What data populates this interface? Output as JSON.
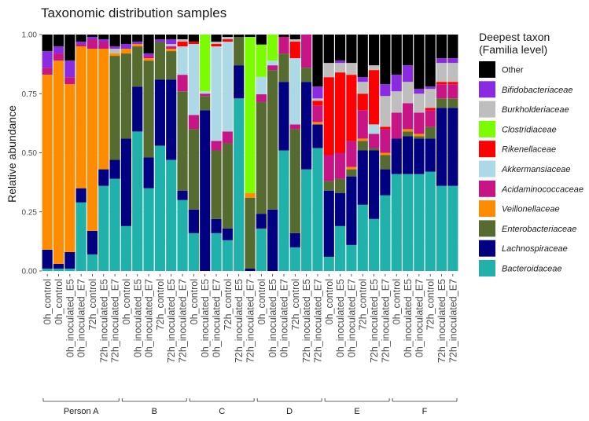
{
  "chart_data": {
    "type": "bar",
    "stacked": true,
    "title": "Taxonomic distribution  samples",
    "ylabel": "Relative abundance",
    "xlabel": "",
    "ylim": [
      0,
      1
    ],
    "yticks": [
      "0.00",
      "0.25",
      "0.50",
      "0.75",
      "1.00"
    ],
    "grid": true,
    "legend_position": "right",
    "legend_title": "Deepest taxon\n(Familia level)",
    "categories": [
      "0h_control",
      "0h_inoculated_E5",
      "0h_inoculated_E7",
      "72h_control",
      "72h_inoculated_E5",
      "72h_inoculated_E7"
    ],
    "groups": [
      "Person A",
      "B",
      "C",
      "D",
      "E",
      "F"
    ],
    "taxa": [
      {
        "name": "Bacteroidaceae",
        "color": "#20b2aa",
        "italic": true
      },
      {
        "name": "Lachnospiraceae",
        "color": "#000080",
        "italic": true
      },
      {
        "name": "Enterobacteriaceae",
        "color": "#556b2f",
        "italic": true
      },
      {
        "name": "Veillonellaceae",
        "color": "#ff8c00",
        "italic": true
      },
      {
        "name": "Acidaminococcaceae",
        "color": "#c71585",
        "italic": true
      },
      {
        "name": "Akkermansiaceae",
        "color": "#add8e6",
        "italic": true
      },
      {
        "name": "Rikenellaceae",
        "color": "#ff0000",
        "italic": true
      },
      {
        "name": "Clostridiaceae",
        "color": "#7cfc00",
        "italic": true
      },
      {
        "name": "Burkholderiaceae",
        "color": "#bebebe",
        "italic": true
      },
      {
        "name": "Bifidobacteriaceae",
        "color": "#8a2be2",
        "italic": true
      },
      {
        "name": "Other",
        "color": "#000000",
        "italic": false
      }
    ],
    "legend_order": [
      "Other",
      "Bifidobacteriaceae",
      "Burkholderiaceae",
      "Clostridiaceae",
      "Rikenellaceae",
      "Akkermansiaceae",
      "Acidaminococcaceae",
      "Veillonellaceae",
      "Enterobacteriaceae",
      "Lachnospiraceae",
      "Bacteroidaceae"
    ],
    "samples": [
      {
        "group": "Person A",
        "label": "0h_control",
        "values": [
          0.01,
          0.08,
          0,
          0.74,
          0.03,
          0,
          0,
          0,
          0,
          0.07,
          0.07
        ]
      },
      {
        "group": "Person A",
        "label": "0h_control",
        "values": [
          0.01,
          0.02,
          0,
          0.86,
          0.03,
          0,
          0,
          0,
          0,
          0.03,
          0.05
        ]
      },
      {
        "group": "Person A",
        "label": "0h_inoculated_E5",
        "values": [
          0.01,
          0.07,
          0,
          0.71,
          0.03,
          0,
          0,
          0,
          0,
          0.07,
          0.11
        ]
      },
      {
        "group": "Person A",
        "label": "0h_inoculated_E7",
        "values": [
          0.29,
          0.06,
          0,
          0.6,
          0.01,
          0,
          0,
          0,
          0,
          0.01,
          0.03
        ]
      },
      {
        "group": "Person A",
        "label": "72h_control",
        "values": [
          0.07,
          0.1,
          0,
          0.77,
          0.04,
          0,
          0,
          0,
          0,
          0.01,
          0.01
        ]
      },
      {
        "group": "Person A",
        "label": "72h_inoculated_E5",
        "values": [
          0.36,
          0.07,
          0,
          0.51,
          0.03,
          0,
          0,
          0,
          0,
          0.01,
          0.02
        ]
      },
      {
        "group": "Person A",
        "label": "72h_inoculated_E7",
        "values": [
          0.39,
          0.08,
          0.44,
          0.01,
          0,
          0,
          0,
          0,
          0.02,
          0.01,
          0.05
        ]
      },
      {
        "group": "B",
        "label": "0h_control",
        "values": [
          0.19,
          0.37,
          0.36,
          0.02,
          0,
          0,
          0,
          0,
          0,
          0.02,
          0.04
        ]
      },
      {
        "group": "B",
        "label": "0h_inoculated_E5",
        "values": [
          0.59,
          0.19,
          0.17,
          0.01,
          0,
          0,
          0,
          0,
          0,
          0.01,
          0.03
        ]
      },
      {
        "group": "B",
        "label": "0h_inoculated_E7",
        "values": [
          0.35,
          0.13,
          0.41,
          0.01,
          0.01,
          0,
          0,
          0,
          0,
          0.01,
          0.08
        ]
      },
      {
        "group": "B",
        "label": "72h_control",
        "values": [
          0.53,
          0.28,
          0.16,
          0,
          0,
          0,
          0,
          0,
          0,
          0.01,
          0.02
        ]
      },
      {
        "group": "B",
        "label": "72h_inoculated_E5",
        "values": [
          0.47,
          0.34,
          0.12,
          0.01,
          0.01,
          0,
          0,
          0,
          0.01,
          0.02,
          0.02
        ]
      },
      {
        "group": "B",
        "label": "72h_inoculated_E7",
        "values": [
          0.3,
          0.04,
          0.42,
          0,
          0.07,
          0.12,
          0.02,
          0,
          0.01,
          0,
          0.02
        ]
      },
      {
        "group": "C",
        "label": "0h_control",
        "values": [
          0.16,
          0.1,
          0.34,
          0,
          0.06,
          0.3,
          0.01,
          0,
          0,
          0,
          0.03
        ]
      },
      {
        "group": "C",
        "label": "0h_inoculated_E5",
        "values": [
          0,
          0.68,
          0.06,
          0,
          0.01,
          0.01,
          0,
          0.24,
          0,
          0,
          0
        ]
      },
      {
        "group": "C",
        "label": "0h_inoculated_E7",
        "values": [
          0.16,
          0.06,
          0.29,
          0,
          0.04,
          0.4,
          0.01,
          0,
          0.01,
          0,
          0.03
        ]
      },
      {
        "group": "C",
        "label": "72h_control",
        "values": [
          0.13,
          0.05,
          0.36,
          0,
          0.05,
          0.38,
          0.01,
          0,
          0.01,
          0,
          0.01
        ]
      },
      {
        "group": "C",
        "label": "72h_inoculated_E5",
        "values": [
          0.73,
          0.14,
          0.12,
          0,
          0,
          0,
          0,
          0,
          0,
          0,
          0.01
        ]
      },
      {
        "group": "C",
        "label": "72h_inoculated_E7",
        "values": [
          0,
          0.01,
          0.3,
          0.02,
          0,
          0,
          0,
          0.66,
          0,
          0,
          0.01
        ]
      },
      {
        "group": "D",
        "label": "0h_control",
        "values": [
          0.17,
          0.06,
          0.45,
          0,
          0.03,
          0.07,
          0,
          0.13,
          0,
          0,
          0.04
        ]
      },
      {
        "group": "D",
        "label": "0h_inoculated_E5",
        "values": [
          0,
          0.26,
          0.59,
          0,
          0.02,
          0.02,
          0,
          0.11,
          0,
          0,
          0
        ]
      },
      {
        "group": "D",
        "label": "0h_inoculated_E7",
        "values": [
          0.51,
          0.29,
          0.12,
          0,
          0.07,
          0,
          0,
          0,
          0,
          0,
          0.01
        ]
      },
      {
        "group": "D",
        "label": "72h_control",
        "values": [
          0.1,
          0.06,
          0.44,
          0,
          0.02,
          0.28,
          0.07,
          0,
          0.01,
          0,
          0.02
        ]
      },
      {
        "group": "D",
        "label": "72h_inoculated_E5",
        "values": [
          0.43,
          0.37,
          0.06,
          0,
          0.14,
          0,
          0,
          0,
          0,
          0,
          0
        ]
      },
      {
        "group": "D",
        "label": "72h_inoculated_E7",
        "values": [
          0.52,
          0.1,
          0,
          0.01,
          0.07,
          0,
          0.02,
          0,
          0.01,
          0.05,
          0.22
        ]
      },
      {
        "group": "E",
        "label": "0h_control",
        "values": [
          0.06,
          0.28,
          0.04,
          0,
          0.11,
          0,
          0.33,
          0,
          0.06,
          0,
          0.12
        ]
      },
      {
        "group": "E",
        "label": "0h_inoculated_E5",
        "values": [
          0.19,
          0.14,
          0.06,
          0,
          0.11,
          0,
          0.34,
          0,
          0.04,
          0.01,
          0.11
        ]
      },
      {
        "group": "E",
        "label": "0h_inoculated_E7",
        "values": [
          0.11,
          0.29,
          0.03,
          0.01,
          0.11,
          0,
          0.28,
          0,
          0.05,
          0,
          0.12
        ]
      },
      {
        "group": "E",
        "label": "72h_control",
        "values": [
          0.28,
          0.23,
          0.04,
          0.01,
          0.12,
          0,
          0.07,
          0,
          0.05,
          0.02,
          0.18
        ]
      },
      {
        "group": "E",
        "label": "72h_inoculated_E5",
        "values": [
          0.22,
          0.29,
          0.01,
          0,
          0.06,
          0.04,
          0.23,
          0,
          0.02,
          0,
          0.13
        ]
      },
      {
        "group": "E",
        "label": "72h_inoculated_E7",
        "values": [
          0.32,
          0.11,
          0.06,
          0.01,
          0.1,
          0,
          0.01,
          0,
          0.13,
          0.05,
          0.21
        ]
      },
      {
        "group": "F",
        "label": "0h_control",
        "values": [
          0.41,
          0.15,
          0,
          0,
          0.11,
          0,
          0,
          0,
          0.09,
          0.07,
          0.17
        ]
      },
      {
        "group": "F",
        "label": "0h_inoculated_E5",
        "values": [
          0.41,
          0.16,
          0.02,
          0.01,
          0.11,
          0,
          0,
          0,
          0.09,
          0.07,
          0.13
        ]
      },
      {
        "group": "F",
        "label": "0h_inoculated_E7",
        "values": [
          0.41,
          0.15,
          0.01,
          0.01,
          0.09,
          0,
          0,
          0,
          0.08,
          0.02,
          0.23
        ]
      },
      {
        "group": "F",
        "label": "72h_control",
        "values": [
          0.42,
          0.14,
          0.05,
          0,
          0.07,
          0,
          0.01,
          0,
          0.08,
          0.01,
          0.22
        ]
      },
      {
        "group": "F",
        "label": "72h_inoculated_E5",
        "values": [
          0.36,
          0.33,
          0.04,
          0,
          0.06,
          0,
          0.01,
          0,
          0.08,
          0.02,
          0.1
        ]
      },
      {
        "group": "F",
        "label": "72h_inoculated_E7",
        "values": [
          0.36,
          0.33,
          0.04,
          0,
          0.06,
          0,
          0.01,
          0,
          0.08,
          0.02,
          0.1
        ]
      }
    ]
  }
}
